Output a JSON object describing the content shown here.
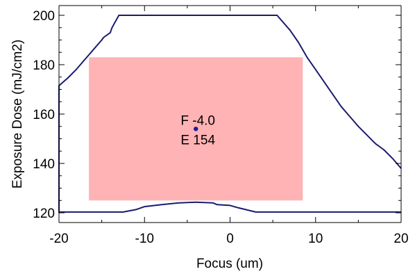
{
  "chart_data": {
    "type": "line",
    "xlabel": "Focus (um)",
    "ylabel": "Exposure Dose (mJ/cm2)",
    "xlim": [
      -20,
      20
    ],
    "ylim": [
      120,
      203
    ],
    "x_ticks": [
      -20,
      -10,
      0,
      10,
      20
    ],
    "x_tick_labels": [
      "-20",
      "-10",
      "0",
      "10",
      "20"
    ],
    "y_ticks": [
      120,
      140,
      160,
      180,
      200
    ],
    "y_tick_labels": [
      "120",
      "140",
      "160",
      "180",
      "200"
    ],
    "grid": false,
    "line_color": "#1a1a6e",
    "rect_color": "#ffb3b5",
    "point_color": "#1a1a9e",
    "series": [
      {
        "name": "",
        "points": [
          [
            -20,
            120
          ],
          [
            -20,
            171.5
          ],
          [
            -19,
            174.5
          ],
          [
            -18,
            178
          ],
          [
            -17,
            182
          ],
          [
            -16,
            186
          ],
          [
            -15,
            190
          ],
          [
            -14.8,
            191
          ],
          [
            -14,
            193
          ],
          [
            -13.8,
            195
          ],
          [
            -13,
            200
          ],
          [
            5.5,
            200
          ],
          [
            6,
            198
          ],
          [
            7,
            194
          ],
          [
            8,
            189
          ],
          [
            9,
            183
          ],
          [
            10,
            178
          ],
          [
            11,
            173
          ],
          [
            12,
            168
          ],
          [
            13,
            163
          ],
          [
            14,
            159
          ],
          [
            15,
            155
          ],
          [
            16,
            151.5
          ],
          [
            17,
            148
          ],
          [
            18,
            145.5
          ],
          [
            19,
            142
          ],
          [
            20,
            138
          ]
        ]
      },
      {
        "name": "",
        "points": [
          [
            -20,
            120.3
          ],
          [
            -12.5,
            120.3
          ],
          [
            -11,
            121.3
          ],
          [
            -10,
            122.5
          ],
          [
            -8,
            123.3
          ],
          [
            -6,
            124
          ],
          [
            -4,
            124.3
          ],
          [
            -2,
            124
          ],
          [
            -1.5,
            123.3
          ],
          [
            0,
            123
          ],
          [
            1,
            122
          ],
          [
            3,
            120.3
          ],
          [
            20,
            120.3
          ]
        ]
      }
    ],
    "window": {
      "x_min": -16.5,
      "x_max": 8.5,
      "y_min": 125,
      "y_max": 183
    },
    "optimum_point": {
      "x": -4.0,
      "y": 154
    },
    "annotations": [
      "F -4.0",
      "E 154"
    ]
  }
}
